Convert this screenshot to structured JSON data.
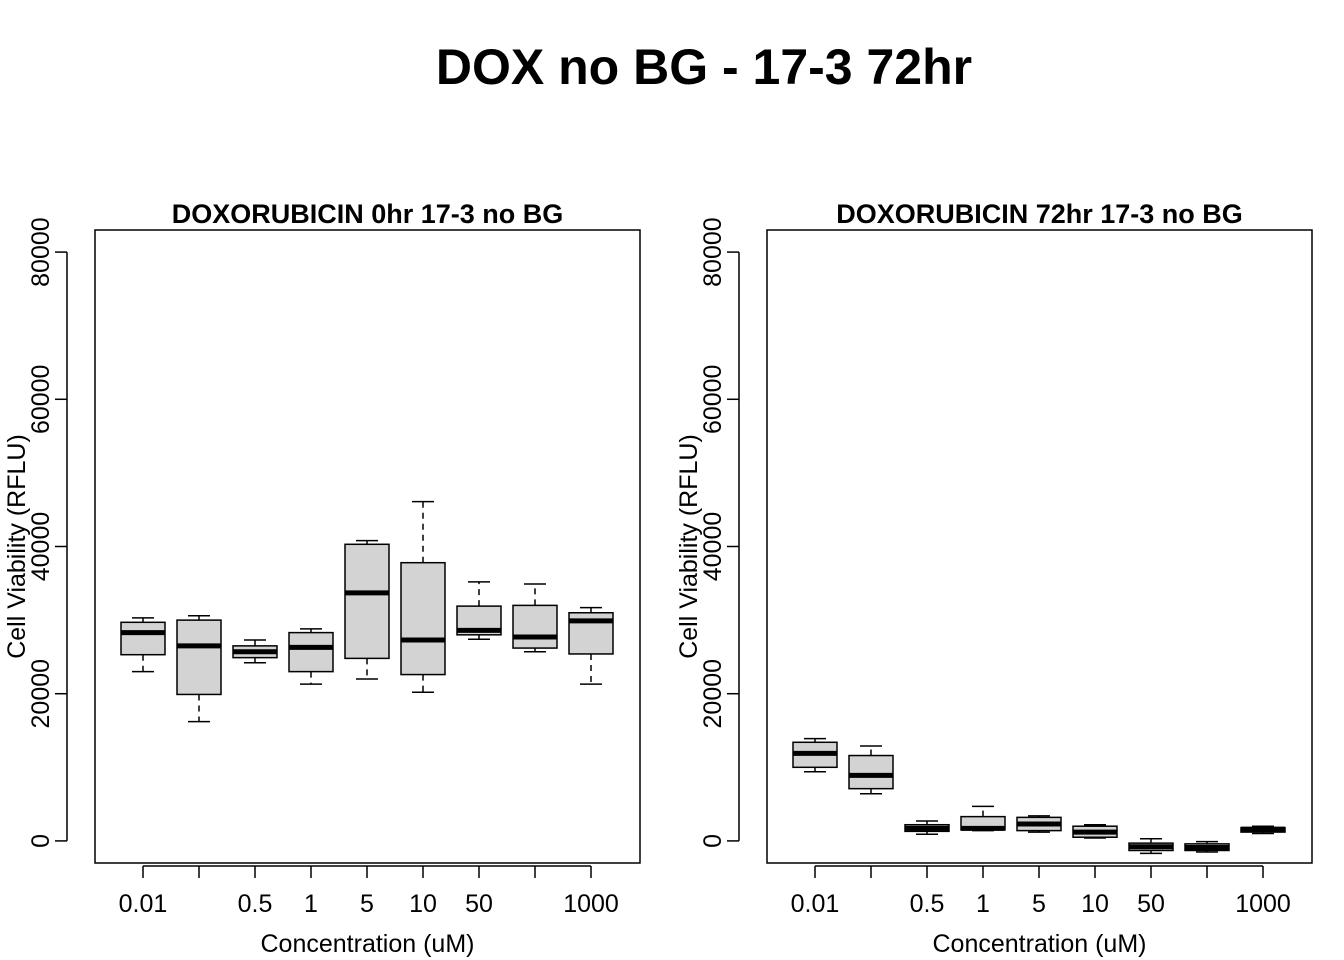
{
  "main_title": "DOX no BG - 17-3 72hr",
  "chart_data": [
    {
      "type": "box",
      "title": "DOXORUBICIN 0hr 17-3 no BG",
      "xlabel": "Concentration (uM)",
      "ylabel": "Cell Viability (RFLU)",
      "ylim": [
        -3000,
        83000
      ],
      "yticks": [
        0,
        20000,
        40000,
        60000,
        80000
      ],
      "tick_labels_x": [
        "0.01",
        "",
        "0.5",
        "1",
        "5",
        "10",
        "50",
        "",
        "1000"
      ],
      "grid": false,
      "boxes": [
        {
          "whisker_low": 23000,
          "q1": 25300,
          "median": 28300,
          "q3": 29700,
          "whisker_high": 30300
        },
        {
          "whisker_low": 16200,
          "q1": 19900,
          "median": 26500,
          "q3": 30000,
          "whisker_high": 30600
        },
        {
          "whisker_low": 24200,
          "q1": 24900,
          "median": 25700,
          "q3": 26500,
          "whisker_high": 27300
        },
        {
          "whisker_low": 21300,
          "q1": 23000,
          "median": 26300,
          "q3": 28300,
          "whisker_high": 28800
        },
        {
          "whisker_low": 22000,
          "q1": 24800,
          "median": 33700,
          "q3": 40300,
          "whisker_high": 40800
        },
        {
          "whisker_low": 20200,
          "q1": 22600,
          "median": 27300,
          "q3": 37800,
          "whisker_high": 46100
        },
        {
          "whisker_low": 27400,
          "q1": 28000,
          "median": 28600,
          "q3": 31900,
          "whisker_high": 35200
        },
        {
          "whisker_low": 25700,
          "q1": 26200,
          "median": 27700,
          "q3": 32000,
          "whisker_high": 34900
        },
        {
          "whisker_low": 21300,
          "q1": 25400,
          "median": 29900,
          "q3": 31000,
          "whisker_high": 31700
        }
      ]
    },
    {
      "type": "box",
      "title": "DOXORUBICIN 72hr 17-3 no BG",
      "xlabel": "Concentration (uM)",
      "ylabel": "Cell Viability (RFLU)",
      "ylim": [
        -3000,
        83000
      ],
      "yticks": [
        0,
        20000,
        40000,
        60000,
        80000
      ],
      "tick_labels_x": [
        "0.01",
        "",
        "0.5",
        "1",
        "5",
        "10",
        "50",
        "",
        "1000"
      ],
      "grid": false,
      "boxes": [
        {
          "whisker_low": 9400,
          "q1": 10000,
          "median": 11900,
          "q3": 13400,
          "whisker_high": 13900
        },
        {
          "whisker_low": 6400,
          "q1": 7100,
          "median": 8900,
          "q3": 11600,
          "whisker_high": 12900
        },
        {
          "whisker_low": 900,
          "q1": 1300,
          "median": 1700,
          "q3": 2200,
          "whisker_high": 2700
        },
        {
          "whisker_low": 1400,
          "q1": 1500,
          "median": 1700,
          "q3": 3300,
          "whisker_high": 4700
        },
        {
          "whisker_low": 1200,
          "q1": 1400,
          "median": 2300,
          "q3": 3200,
          "whisker_high": 3400
        },
        {
          "whisker_low": 400,
          "q1": 500,
          "median": 1200,
          "q3": 2000,
          "whisker_high": 2200
        },
        {
          "whisker_low": -1700,
          "q1": -1300,
          "median": -800,
          "q3": -300,
          "whisker_high": 300
        },
        {
          "whisker_low": -1500,
          "q1": -1300,
          "median": -900,
          "q3": -400,
          "whisker_high": -100
        },
        {
          "whisker_low": 1000,
          "q1": 1200,
          "median": 1600,
          "q3": 1800,
          "whisker_high": 2000
        }
      ]
    }
  ]
}
